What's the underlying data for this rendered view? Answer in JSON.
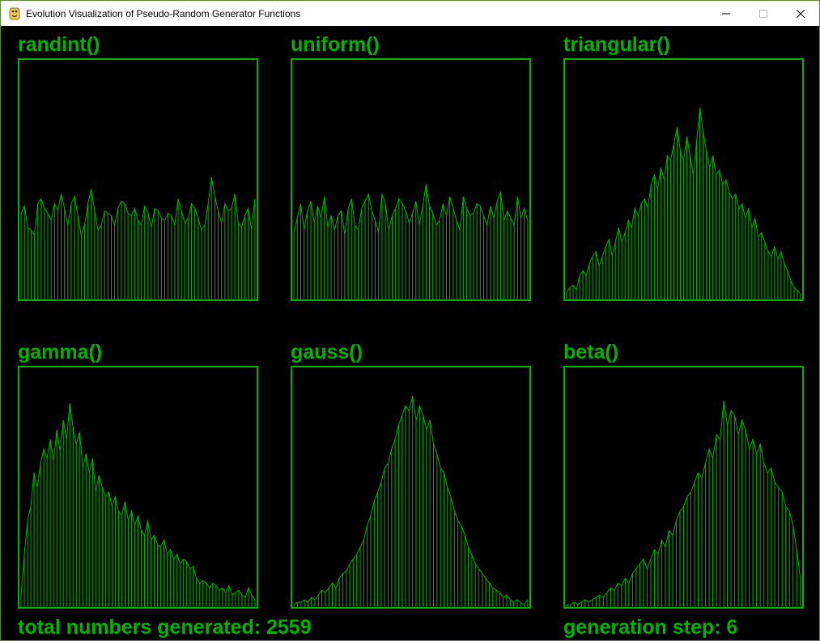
{
  "window": {
    "title": "Evolution Visualization of Pseudo-Random Generator Functions",
    "controls": [
      "minimize-icon",
      "maximize-icon",
      "close-icon"
    ]
  },
  "colors": {
    "accent": "#00b400",
    "background": "#000000"
  },
  "panels": [
    {
      "label": "randint()",
      "chart_index": 0
    },
    {
      "label": "uniform()",
      "chart_index": 1
    },
    {
      "label": "triangular()",
      "chart_index": 2
    },
    {
      "label": "gamma()",
      "chart_index": 3
    },
    {
      "label": "gauss()",
      "chart_index": 4
    },
    {
      "label": "beta()",
      "chart_index": 5
    }
  ],
  "footer": {
    "total_label": "total numbers generated:  2559",
    "step_label": "generation step: 6"
  },
  "chart_data": [
    {
      "type": "bar",
      "title": "randint()",
      "ylim": [
        0,
        1
      ],
      "values": [
        0.36,
        0.39,
        0.3,
        0.29,
        0.27,
        0.4,
        0.42,
        0.38,
        0.36,
        0.33,
        0.4,
        0.37,
        0.44,
        0.38,
        0.31,
        0.4,
        0.43,
        0.35,
        0.27,
        0.31,
        0.4,
        0.46,
        0.37,
        0.29,
        0.31,
        0.37,
        0.36,
        0.35,
        0.31,
        0.38,
        0.41,
        0.4,
        0.36,
        0.35,
        0.38,
        0.33,
        0.31,
        0.39,
        0.36,
        0.3,
        0.38,
        0.37,
        0.34,
        0.33,
        0.36,
        0.35,
        0.31,
        0.42,
        0.37,
        0.32,
        0.34,
        0.4,
        0.38,
        0.34,
        0.29,
        0.31,
        0.4,
        0.51,
        0.43,
        0.37,
        0.32,
        0.4,
        0.37,
        0.38,
        0.44,
        0.32,
        0.3,
        0.35,
        0.38,
        0.29,
        0.42
      ]
    },
    {
      "type": "bar",
      "title": "uniform()",
      "ylim": [
        0,
        1
      ],
      "values": [
        0.28,
        0.34,
        0.4,
        0.29,
        0.37,
        0.41,
        0.32,
        0.39,
        0.34,
        0.43,
        0.3,
        0.35,
        0.29,
        0.35,
        0.37,
        0.27,
        0.38,
        0.42,
        0.31,
        0.29,
        0.38,
        0.41,
        0.44,
        0.37,
        0.33,
        0.28,
        0.44,
        0.4,
        0.29,
        0.35,
        0.38,
        0.42,
        0.4,
        0.37,
        0.32,
        0.36,
        0.41,
        0.31,
        0.39,
        0.48,
        0.39,
        0.36,
        0.31,
        0.33,
        0.4,
        0.35,
        0.43,
        0.38,
        0.33,
        0.29,
        0.43,
        0.38,
        0.35,
        0.36,
        0.4,
        0.39,
        0.35,
        0.31,
        0.39,
        0.34,
        0.41,
        0.45,
        0.33,
        0.37,
        0.34,
        0.31,
        0.43,
        0.34,
        0.38,
        0.33
      ]
    },
    {
      "type": "bar",
      "title": "triangular()",
      "ylim": [
        0,
        1
      ],
      "values": [
        0.03,
        0.05,
        0.06,
        0.04,
        0.1,
        0.12,
        0.1,
        0.15,
        0.18,
        0.2,
        0.14,
        0.18,
        0.22,
        0.25,
        0.18,
        0.24,
        0.3,
        0.24,
        0.28,
        0.33,
        0.3,
        0.38,
        0.35,
        0.4,
        0.42,
        0.38,
        0.48,
        0.52,
        0.46,
        0.55,
        0.5,
        0.6,
        0.58,
        0.65,
        0.72,
        0.62,
        0.58,
        0.68,
        0.6,
        0.52,
        0.66,
        0.8,
        0.7,
        0.62,
        0.55,
        0.6,
        0.52,
        0.54,
        0.48,
        0.5,
        0.45,
        0.42,
        0.44,
        0.38,
        0.4,
        0.34,
        0.38,
        0.3,
        0.34,
        0.26,
        0.28,
        0.24,
        0.2,
        0.18,
        0.22,
        0.17,
        0.2,
        0.15,
        0.12,
        0.08,
        0.05,
        0.04,
        0.02
      ]
    },
    {
      "type": "bar",
      "title": "gamma()",
      "ylim": [
        0,
        1
      ],
      "values": [
        0.05,
        0.22,
        0.36,
        0.42,
        0.56,
        0.5,
        0.6,
        0.66,
        0.62,
        0.7,
        0.61,
        0.74,
        0.65,
        0.78,
        0.7,
        0.85,
        0.75,
        0.68,
        0.73,
        0.58,
        0.64,
        0.56,
        0.62,
        0.48,
        0.55,
        0.5,
        0.46,
        0.48,
        0.42,
        0.46,
        0.4,
        0.38,
        0.44,
        0.36,
        0.4,
        0.34,
        0.38,
        0.32,
        0.3,
        0.36,
        0.28,
        0.3,
        0.26,
        0.25,
        0.28,
        0.22,
        0.24,
        0.2,
        0.22,
        0.18,
        0.2,
        0.19,
        0.16,
        0.17,
        0.12,
        0.1,
        0.11,
        0.1,
        0.08,
        0.1,
        0.09,
        0.07,
        0.08,
        0.06,
        0.09,
        0.05,
        0.06,
        0.07,
        0.05,
        0.04,
        0.08,
        0.05,
        0.03
      ]
    },
    {
      "type": "bar",
      "title": "gauss()",
      "ylim": [
        0,
        1
      ],
      "values": [
        0.01,
        0.02,
        0.02,
        0.03,
        0.02,
        0.04,
        0.03,
        0.05,
        0.07,
        0.06,
        0.08,
        0.1,
        0.08,
        0.12,
        0.14,
        0.15,
        0.18,
        0.2,
        0.22,
        0.25,
        0.28,
        0.34,
        0.38,
        0.44,
        0.48,
        0.52,
        0.58,
        0.6,
        0.66,
        0.7,
        0.76,
        0.8,
        0.84,
        0.82,
        0.88,
        0.78,
        0.84,
        0.8,
        0.74,
        0.78,
        0.68,
        0.64,
        0.58,
        0.56,
        0.5,
        0.46,
        0.4,
        0.36,
        0.34,
        0.3,
        0.25,
        0.22,
        0.18,
        0.16,
        0.14,
        0.12,
        0.1,
        0.08,
        0.07,
        0.06,
        0.04,
        0.05,
        0.03,
        0.02,
        0.03,
        0.02,
        0.01,
        0.03
      ]
    },
    {
      "type": "bar",
      "title": "beta()",
      "ylim": [
        0,
        1
      ],
      "values": [
        0.01,
        0.01,
        0.02,
        0.01,
        0.02,
        0.03,
        0.02,
        0.03,
        0.04,
        0.05,
        0.04,
        0.06,
        0.08,
        0.07,
        0.1,
        0.09,
        0.12,
        0.1,
        0.14,
        0.16,
        0.18,
        0.2,
        0.16,
        0.2,
        0.24,
        0.22,
        0.28,
        0.25,
        0.32,
        0.3,
        0.36,
        0.4,
        0.42,
        0.46,
        0.48,
        0.52,
        0.56,
        0.54,
        0.6,
        0.66,
        0.62,
        0.72,
        0.7,
        0.86,
        0.76,
        0.82,
        0.8,
        0.72,
        0.78,
        0.74,
        0.66,
        0.7,
        0.64,
        0.68,
        0.6,
        0.56,
        0.58,
        0.52,
        0.5,
        0.48,
        0.42,
        0.4,
        0.34,
        0.24,
        0.12
      ]
    }
  ]
}
